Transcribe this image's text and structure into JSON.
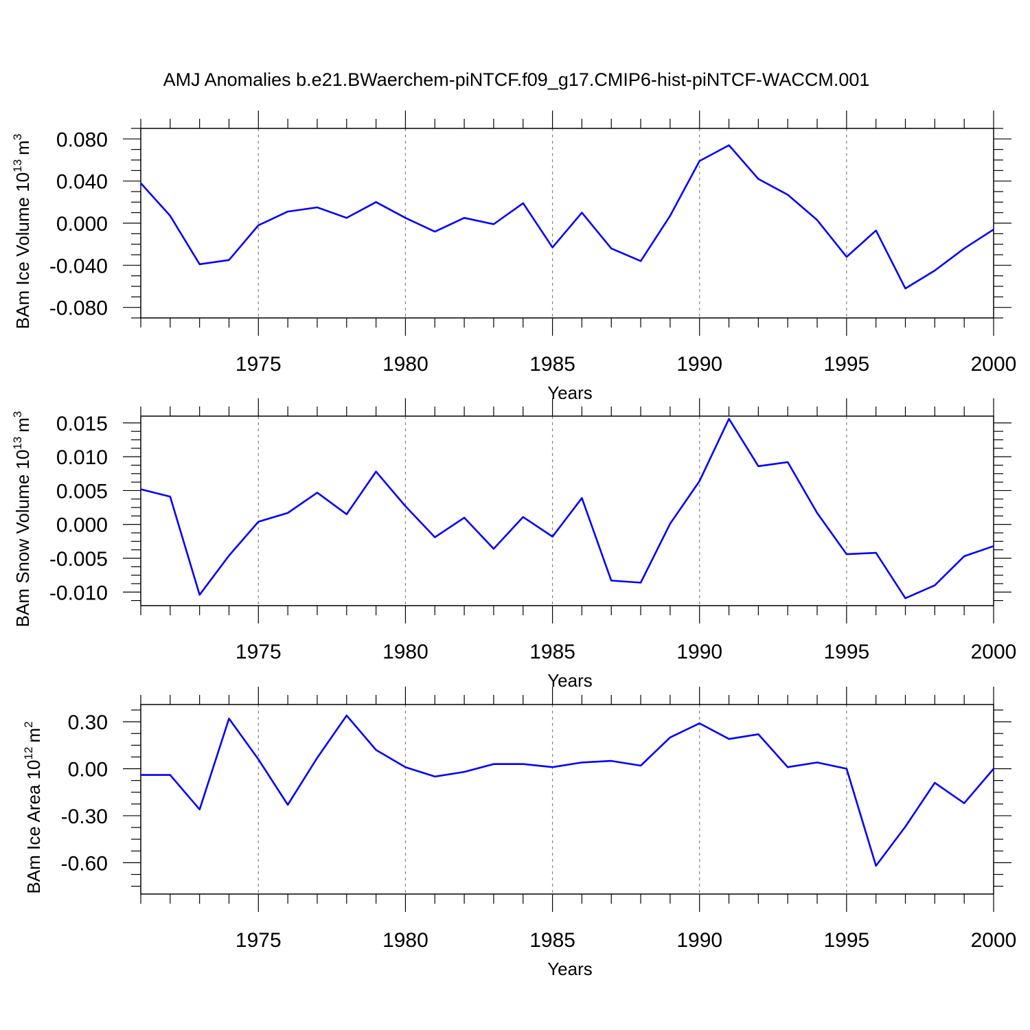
{
  "title": "AMJ Anomalies b.e21.BWaerchem-piNTCF.f09_g17.CMIP6-hist-piNTCF-WACCM.001",
  "line_color": "#0000ff",
  "chart_data": [
    {
      "type": "line",
      "ylabel": "BAm Ice Volume",
      "ylabel_unit_base": "10",
      "ylabel_unit_exp": "13",
      "ylabel_unit_sym": "m",
      "ylabel_unit_sym_exp": "3",
      "xlabel": "Years",
      "xlim": [
        1971,
        2000
      ],
      "ylim": [
        -0.09,
        0.09
      ],
      "xticks": [
        "1975",
        "1980",
        "1985",
        "1990",
        "1995",
        "2000"
      ],
      "yticks": [
        "0.080",
        "0.040",
        "0.000",
        "-0.040",
        "-0.080"
      ],
      "ytick_values": [
        0.08,
        0.04,
        0.0,
        -0.04,
        -0.08
      ],
      "grid": "vertical dashed at major x ticks",
      "x": [
        1971,
        1972,
        1973,
        1974,
        1975,
        1976,
        1977,
        1978,
        1979,
        1980,
        1981,
        1982,
        1983,
        1984,
        1985,
        1986,
        1987,
        1988,
        1989,
        1990,
        1991,
        1992,
        1993,
        1994,
        1995,
        1996,
        1997,
        1998,
        1999,
        2000
      ],
      "values": [
        0.038,
        0.007,
        -0.039,
        -0.035,
        -0.002,
        0.011,
        0.015,
        0.005,
        0.02,
        0.005,
        -0.008,
        0.005,
        -0.001,
        0.019,
        -0.023,
        0.01,
        -0.024,
        -0.036,
        0.007,
        0.059,
        0.074,
        0.042,
        0.027,
        0.003,
        -0.032,
        -0.007,
        -0.062,
        -0.045,
        -0.024,
        -0.006
      ]
    },
    {
      "type": "line",
      "ylabel": "BAm Snow Volume",
      "ylabel_unit_base": "10",
      "ylabel_unit_exp": "13",
      "ylabel_unit_sym": "m",
      "ylabel_unit_sym_exp": "3",
      "xlabel": "Years",
      "xlim": [
        1971,
        2000
      ],
      "ylim": [
        -0.012,
        0.016
      ],
      "xticks": [
        "1975",
        "1980",
        "1985",
        "1990",
        "1995",
        "2000"
      ],
      "yticks": [
        "0.015",
        "0.010",
        "0.005",
        "0.000",
        "-0.005",
        "-0.010"
      ],
      "ytick_values": [
        0.015,
        0.01,
        0.005,
        0.0,
        -0.005,
        -0.01
      ],
      "grid": "vertical dashed at major x ticks",
      "x": [
        1971,
        1972,
        1973,
        1974,
        1975,
        1976,
        1977,
        1978,
        1979,
        1980,
        1981,
        1982,
        1983,
        1984,
        1985,
        1986,
        1987,
        1988,
        1989,
        1990,
        1991,
        1992,
        1993,
        1994,
        1995,
        1996,
        1997,
        1998,
        1999,
        2000
      ],
      "values": [
        0.0052,
        0.0041,
        -0.0104,
        -0.0046,
        0.0004,
        0.0017,
        0.0047,
        0.0015,
        0.0078,
        0.0027,
        -0.0019,
        0.001,
        -0.0036,
        0.0011,
        -0.0018,
        0.0039,
        -0.0083,
        -0.0086,
        0.0001,
        0.0064,
        0.0156,
        0.0086,
        0.0092,
        0.0017,
        -0.0044,
        -0.0042,
        -0.0109,
        -0.009,
        -0.0047,
        -0.0032
      ]
    },
    {
      "type": "line",
      "ylabel": "BAm Ice Area",
      "ylabel_unit_base": "10",
      "ylabel_unit_exp": "12",
      "ylabel_unit_sym": "m",
      "ylabel_unit_sym_exp": "2",
      "xlabel": "Years",
      "xlim": [
        1971,
        2000
      ],
      "ylim": [
        -0.8,
        0.41
      ],
      "xticks": [
        "1975",
        "1980",
        "1985",
        "1990",
        "1995",
        "2000"
      ],
      "yticks": [
        "0.30",
        "0.00",
        "-0.30",
        "-0.60"
      ],
      "ytick_values": [
        0.3,
        0.0,
        -0.3,
        -0.6
      ],
      "grid": "vertical dashed at major x ticks",
      "x": [
        1971,
        1972,
        1973,
        1974,
        1975,
        1976,
        1977,
        1978,
        1979,
        1980,
        1981,
        1982,
        1983,
        1984,
        1985,
        1986,
        1987,
        1988,
        1989,
        1990,
        1991,
        1992,
        1993,
        1994,
        1995,
        1996,
        1997,
        1998,
        1999,
        2000
      ],
      "values": [
        -0.04,
        -0.04,
        -0.26,
        0.32,
        0.06,
        -0.23,
        0.07,
        0.34,
        0.12,
        0.01,
        -0.05,
        -0.02,
        0.03,
        0.03,
        0.01,
        0.04,
        0.05,
        0.02,
        0.2,
        0.29,
        0.19,
        0.22,
        0.01,
        0.04,
        0.0,
        -0.62,
        -0.37,
        -0.09,
        -0.22,
        0.0
      ]
    }
  ]
}
